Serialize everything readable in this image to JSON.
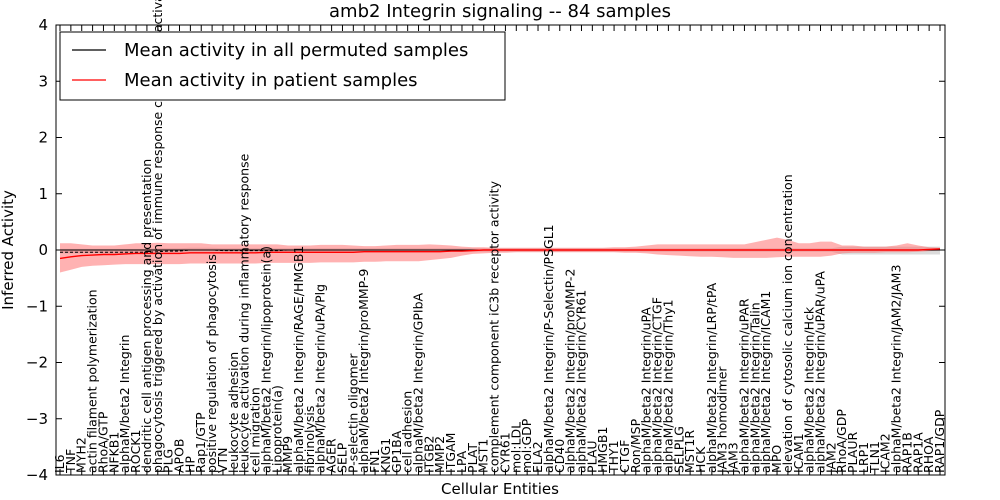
{
  "chart_data": {
    "type": "line",
    "title": "amb2 Integrin signaling -- 84 samples",
    "xlabel": "Cellular Entities",
    "ylabel": "Inferred Activity",
    "ylim": [
      -4,
      4
    ],
    "yticks": [
      -4,
      -3,
      -2,
      -1,
      0,
      1,
      2,
      3,
      4
    ],
    "legend_position": "top-left",
    "grid": false,
    "categories": [
      "IL6",
      "TNF",
      "MYH2",
      "actin filament polymerization",
      "RhoA/GTP",
      "NFKB1",
      "alphaM/beta2 Integrin",
      "ROCK1",
      "dendritic cell antigen processing and presentation",
      "phagocytosis triggered by activation of immune response cell surface activating receptor",
      "PLG",
      "APOB",
      "HP",
      "Rap1/GTP",
      "positive regulation of phagocytosis",
      "VTN",
      "leukocyte adhesion",
      "leukocyte activation during inflammatory response",
      "cell migration",
      "alphaM/beta2 Integrin/lipoprotein(a)",
      "Lipoprotein(a)",
      "MMP9",
      "alphaM/beta2 Integrin/RAGE/HMGB1",
      "fibrinolysis",
      "alphaM/beta2 Integrin/uPA/Plg",
      "AGER",
      "SELP",
      "P-selectin oligomer",
      "alphaM/beta2 Integrin/proMMP-9",
      "FN1",
      "KNG1",
      "GP1BA",
      "cell adhesion",
      "alphaM/beta2 Integrin/GPIbA",
      "ITGB2",
      "MMP2",
      "ITGAM",
      "LPA",
      "PLAT",
      "MST1",
      "complement component iC3b receptor activity",
      "CYR61",
      "mol:LDL",
      "mol:GDP",
      "ELA2",
      "alphaM/beta2 Integrin/P-Selectin/PSGL1",
      "CD40",
      "alphaM/beta2 Integrin/proMMP-2",
      "alphaM/beta2 Integrin/CYR61",
      "PLAU",
      "HMGB1",
      "THY1",
      "CTGF",
      "Ron/MSP",
      "alphaM/beta2 Integrin/uPA",
      "alphaM/beta2 Integrin/CTGF",
      "alphaM/beta2 Integrin/Thy1",
      "SELPLG",
      "MST1R",
      "HCK",
      "alphaM/beta2 Integrin/LRP/tPA",
      "JAM3 homodimer",
      "JAM3",
      "alphaM/beta2 Integrin/uPAR",
      "alphaM/beta2 Integrin/Talin",
      "alphaM/beta2 Integrin/ICAM1",
      "MPO",
      "elevation of cytosolic calcium ion concentration",
      "ICAM1",
      "alphaM/beta2 Integrin/Hck",
      "alphaM/beta2 Integrin/uPAR/uPA",
      "JAM2",
      "RhoA/GDP",
      "PLAUR",
      "LRP1",
      "TLN1",
      "ICAM2",
      "alphaM/beta2 Integrin/JAM2/JAM3",
      "RAP1B",
      "RAP1A",
      "RHOA",
      "RAP1/GDP"
    ],
    "series": [
      {
        "name": "Mean activity in all permuted samples",
        "color": "#000000",
        "values": [
          -0.04,
          -0.04,
          -0.04,
          -0.04,
          -0.04,
          -0.04,
          -0.04,
          -0.04,
          -0.04,
          -0.03,
          -0.02,
          -0.02,
          0.0,
          0.0,
          0.0,
          -0.01,
          -0.01,
          -0.01,
          -0.01,
          -0.01,
          -0.01,
          0.0,
          0.0,
          0.0,
          0.0,
          0.0,
          0.0,
          0.0,
          0.0,
          0.0,
          0.0,
          0.0,
          0.0,
          0.0,
          0.0,
          0.0,
          0.0,
          0.0,
          0.0,
          0.0,
          0.0,
          0.0,
          0.0,
          0.0,
          0.0,
          0.0,
          0.0,
          0.0,
          0.0,
          0.0,
          0.0,
          0.0,
          0.0,
          0.0,
          0.0,
          0.0,
          0.0,
          0.0,
          0.0,
          0.0,
          0.0,
          0.0,
          0.0,
          0.0,
          0.0,
          0.0,
          0.0,
          0.0,
          0.0,
          0.0,
          0.0,
          0.0,
          0.0,
          0.0,
          0.0,
          0.0,
          0.0,
          0.0,
          0.0,
          0.0,
          0.0,
          0.0
        ]
      },
      {
        "name": "Mean activity in patient samples",
        "color": "#ff0000",
        "values": [
          -0.15,
          -0.12,
          -0.1,
          -0.09,
          -0.08,
          -0.08,
          -0.07,
          -0.06,
          -0.06,
          -0.06,
          -0.06,
          -0.06,
          -0.05,
          -0.05,
          -0.05,
          -0.05,
          -0.05,
          -0.05,
          -0.05,
          -0.04,
          -0.04,
          -0.04,
          -0.04,
          -0.04,
          -0.04,
          -0.04,
          -0.04,
          -0.04,
          -0.03,
          -0.03,
          -0.03,
          -0.03,
          -0.03,
          -0.03,
          -0.03,
          -0.03,
          -0.02,
          -0.02,
          -0.01,
          0.0,
          0.0,
          0.0,
          0.0,
          0.0,
          0.0,
          0.0,
          0.0,
          0.0,
          0.0,
          0.0,
          0.0,
          0.0,
          0.0,
          0.0,
          0.0,
          0.0,
          0.0,
          0.0,
          0.0,
          0.0,
          0.0,
          0.0,
          0.0,
          0.0,
          0.0,
          0.0,
          0.0,
          0.0,
          0.0,
          0.0,
          0.0,
          0.0,
          0.0,
          0.0,
          0.0,
          0.0,
          0.0,
          0.0,
          0.0,
          0.0,
          0.01,
          0.02
        ]
      }
    ],
    "bands": [
      {
        "series": "Mean activity in all permuted samples",
        "color": "#b0b0b0",
        "lower": [
          -0.06,
          -0.06,
          -0.06,
          -0.06,
          -0.06,
          -0.06,
          -0.06,
          -0.06,
          -0.06,
          -0.05,
          -0.05,
          -0.04,
          -0.03,
          -0.03,
          -0.03,
          -0.03,
          -0.03,
          -0.03,
          -0.03,
          -0.03,
          -0.03,
          -0.03,
          -0.03,
          -0.03,
          -0.03,
          -0.03,
          -0.03,
          -0.03,
          -0.03,
          -0.03,
          -0.03,
          -0.03,
          -0.03,
          -0.03,
          -0.03,
          -0.03,
          -0.03,
          -0.03,
          -0.03,
          -0.03,
          -0.03,
          -0.03,
          -0.03,
          -0.03,
          -0.03,
          -0.03,
          -0.03,
          -0.03,
          -0.03,
          -0.03,
          -0.03,
          -0.03,
          -0.03,
          -0.03,
          -0.03,
          -0.03,
          -0.03,
          -0.03,
          -0.03,
          -0.03,
          -0.03,
          -0.03,
          -0.03,
          -0.03,
          -0.03,
          -0.03,
          -0.03,
          -0.03,
          -0.03,
          -0.03,
          -0.03,
          -0.03,
          -0.08,
          -0.08,
          -0.08,
          -0.08,
          -0.08,
          -0.08,
          -0.08,
          -0.08,
          -0.08,
          -0.08
        ],
        "upper": [
          0.02,
          0.02,
          0.02,
          0.02,
          0.02,
          0.02,
          0.02,
          0.02,
          0.02,
          0.03,
          0.03,
          0.03,
          0.04,
          0.04,
          0.04,
          0.03,
          0.03,
          0.03,
          0.03,
          0.03,
          0.03,
          0.03,
          0.03,
          0.03,
          0.03,
          0.03,
          0.03,
          0.03,
          0.03,
          0.03,
          0.03,
          0.03,
          0.03,
          0.03,
          0.03,
          0.03,
          0.03,
          0.03,
          0.03,
          0.03,
          0.03,
          0.03,
          0.03,
          0.03,
          0.03,
          0.03,
          0.03,
          0.03,
          0.03,
          0.03,
          0.03,
          0.03,
          0.03,
          0.03,
          0.03,
          0.03,
          0.03,
          0.03,
          0.03,
          0.03,
          0.03,
          0.03,
          0.03,
          0.03,
          0.03,
          0.03,
          0.03,
          0.03,
          0.03,
          0.03,
          0.03,
          0.03,
          0.06,
          0.06,
          0.06,
          0.06,
          0.06,
          0.06,
          0.06,
          0.06,
          0.06,
          0.06
        ]
      },
      {
        "series": "Mean activity in patient samples",
        "color": "#ff6666",
        "lower": [
          -0.4,
          -0.35,
          -0.3,
          -0.28,
          -0.27,
          -0.26,
          -0.25,
          -0.25,
          -0.25,
          -0.25,
          -0.25,
          -0.25,
          -0.24,
          -0.24,
          -0.24,
          -0.24,
          -0.24,
          -0.24,
          -0.24,
          -0.23,
          -0.23,
          -0.23,
          -0.23,
          -0.23,
          -0.22,
          -0.22,
          -0.22,
          -0.22,
          -0.21,
          -0.21,
          -0.2,
          -0.2,
          -0.2,
          -0.2,
          -0.18,
          -0.16,
          -0.14,
          -0.1,
          -0.07,
          -0.06,
          -0.05,
          -0.05,
          -0.04,
          -0.04,
          -0.04,
          -0.04,
          -0.04,
          -0.04,
          -0.04,
          -0.04,
          -0.04,
          -0.04,
          -0.05,
          -0.05,
          -0.06,
          -0.08,
          -0.09,
          -0.1,
          -0.11,
          -0.12,
          -0.12,
          -0.13,
          -0.14,
          -0.14,
          -0.14,
          -0.14,
          -0.13,
          -0.12,
          -0.12,
          -0.12,
          -0.12,
          -0.1,
          -0.06,
          -0.05,
          -0.05,
          -0.05,
          -0.04,
          -0.04,
          -0.04,
          -0.03,
          -0.02,
          -0.01
        ],
        "upper": [
          0.12,
          0.12,
          0.1,
          0.08,
          0.08,
          0.08,
          0.1,
          0.12,
          0.12,
          0.13,
          0.12,
          0.12,
          0.12,
          0.12,
          0.1,
          0.1,
          0.1,
          0.1,
          0.1,
          0.1,
          0.1,
          0.08,
          0.08,
          0.08,
          0.09,
          0.09,
          0.09,
          0.08,
          0.07,
          0.07,
          0.08,
          0.09,
          0.09,
          0.09,
          0.1,
          0.09,
          0.08,
          0.06,
          0.05,
          0.05,
          0.04,
          0.04,
          0.04,
          0.04,
          0.04,
          0.04,
          0.04,
          0.04,
          0.04,
          0.04,
          0.04,
          0.05,
          0.05,
          0.06,
          0.08,
          0.1,
          0.1,
          0.1,
          0.1,
          0.1,
          0.1,
          0.1,
          0.1,
          0.1,
          0.14,
          0.18,
          0.22,
          0.18,
          0.12,
          0.12,
          0.15,
          0.15,
          0.08,
          0.08,
          0.06,
          0.06,
          0.06,
          0.08,
          0.12,
          0.08,
          0.05,
          0.04
        ]
      }
    ]
  }
}
